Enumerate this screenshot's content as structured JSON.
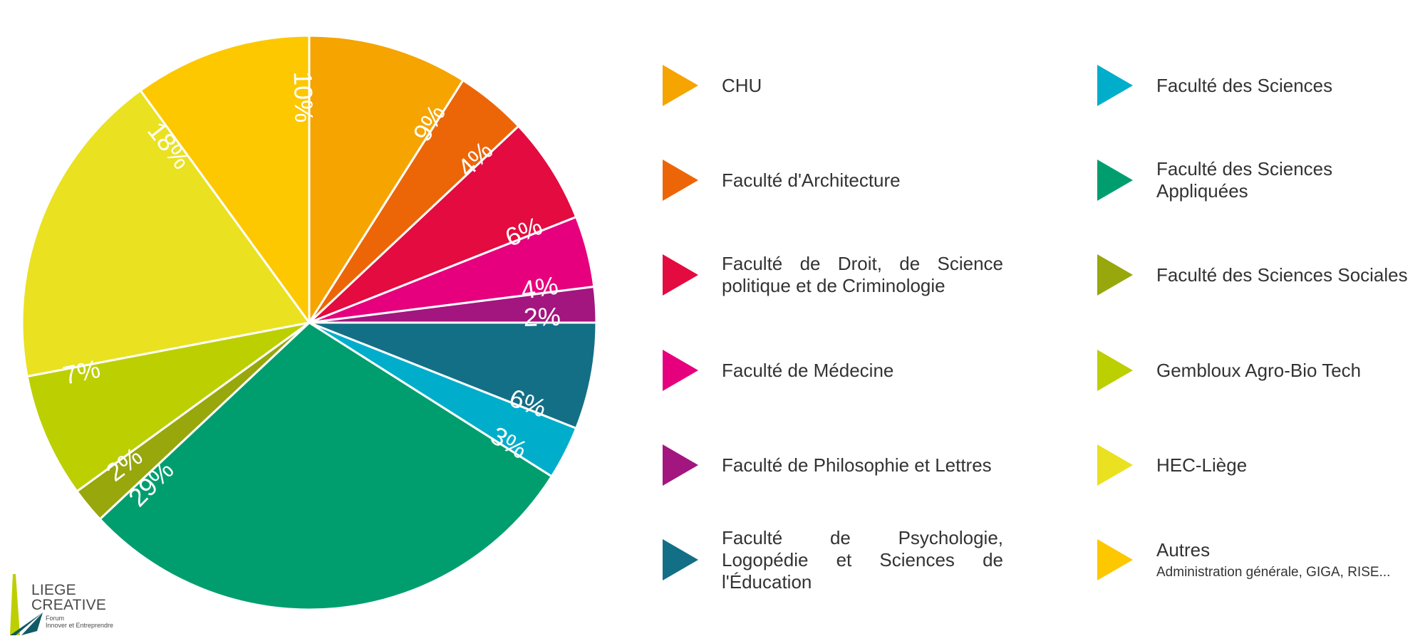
{
  "chart_data": {
    "type": "pie",
    "title": "",
    "start": "top",
    "direction": "clockwise",
    "slices": [
      {
        "label": "CHU",
        "value": 9,
        "display": "9%",
        "color": "#f5a400"
      },
      {
        "label": "Faculté d'Architecture",
        "value": 4,
        "display": "4%",
        "color": "#ec6608"
      },
      {
        "label": "Faculté de Droit, de Science politique et de Criminologie",
        "value": 6,
        "display": "6%",
        "color": "#e30b3f"
      },
      {
        "label": "Faculté de Médecine",
        "value": 4,
        "display": "4%",
        "color": "#e6007e"
      },
      {
        "label": "Faculté de Philosophie et Lettres",
        "value": 2,
        "display": "2%",
        "color": "#a3157f"
      },
      {
        "label": "Faculté de Psychologie, Logopédie et Sciences de l'Éducation",
        "value": 6,
        "display": "6%",
        "color": "#136f86"
      },
      {
        "label": "Faculté des Sciences",
        "value": 3,
        "display": "3%",
        "color": "#00aecb"
      },
      {
        "label": "Faculté des Sciences Appliquées",
        "value": 29,
        "display": "29%",
        "color": "#009e6e"
      },
      {
        "label": "Faculté des Sciences Sociales",
        "value": 2,
        "display": "2%",
        "color": "#97a70c"
      },
      {
        "label": "Gembloux Agro-Bio Tech",
        "value": 7,
        "display": "7%",
        "color": "#bccf00"
      },
      {
        "label": "HEC-Liège",
        "value": 18,
        "display": "18%",
        "color": "#eae120"
      },
      {
        "label": "Autres",
        "value": 10,
        "display": "10%",
        "color": "#fdc800",
        "sublabel": "Administration générale, GIGA, RISE..."
      }
    ],
    "legend": {
      "placement": "right",
      "columns": 2,
      "marker": "triangle"
    }
  },
  "logo": {
    "line1": "LIEGE",
    "line2": "CREATIVE",
    "tagline1": "Forum",
    "tagline2": "Innover et Entreprendre",
    "colors": {
      "green": "#bccf00",
      "teal": "#0f5a66"
    }
  }
}
